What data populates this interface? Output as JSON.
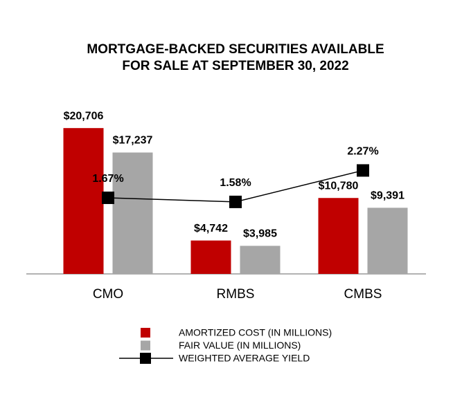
{
  "chart_data": {
    "type": "bar",
    "title": "MORTGAGE-BACKED SECURITIES AVAILABLE FOR SALE AT SEPTEMBER 30, 2022",
    "categories": [
      "CMO",
      "RMBS",
      "CMBS"
    ],
    "series": [
      {
        "name": "AMORTIZED COST (IN MILLIONS)",
        "color": "#c00000",
        "type": "bar",
        "values": [
          20706,
          4742,
          10780
        ],
        "value_labels": [
          "$20,706",
          "$4,742",
          "$10,780"
        ]
      },
      {
        "name": "FAIR VALUE (IN MILLIONS)",
        "color": "#a6a6a6",
        "type": "bar",
        "values": [
          17237,
          3985,
          9391
        ],
        "value_labels": [
          "$17,237",
          "$3,985",
          "$9,391"
        ]
      },
      {
        "name": "WEIGHTED AVERAGE YIELD",
        "color": "#000000",
        "type": "line",
        "axis": "y2",
        "values": [
          1.67,
          1.58,
          2.27
        ],
        "value_labels": [
          "1.67%",
          "1.58%",
          "2.27%"
        ]
      }
    ],
    "ylim": [
      0,
      22000
    ],
    "y2lim": [
      0,
      3.4
    ]
  }
}
